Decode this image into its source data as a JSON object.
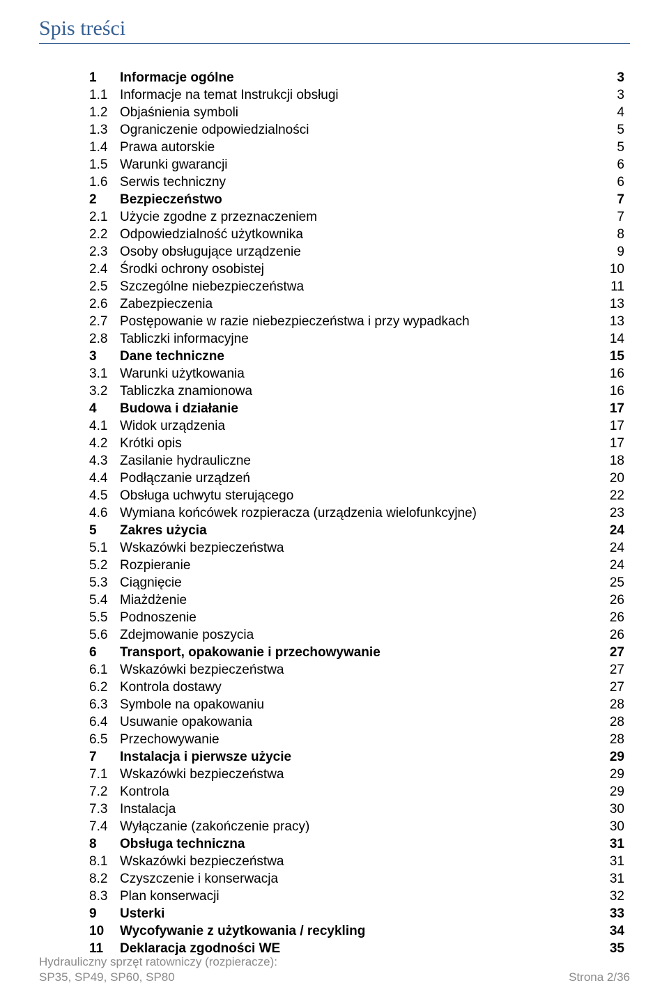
{
  "colors": {
    "title": "#365f91",
    "title_rule": "#365f91",
    "body_text": "#000000",
    "footer_text": "#8a8a8a",
    "background": "#ffffff"
  },
  "typography": {
    "title_font": "Comic Sans MS",
    "title_size_pt": 22,
    "body_font": "Arial",
    "body_size_pt": 14,
    "footer_size_pt": 12
  },
  "title": "Spis treści",
  "toc": [
    {
      "level": 1,
      "num": "1",
      "label": "Informacje ogólne",
      "page": "3"
    },
    {
      "level": 2,
      "num": "1.1",
      "label": "Informacje na temat Instrukcji obsługi",
      "page": "3"
    },
    {
      "level": 2,
      "num": "1.2",
      "label": "Objaśnienia symboli",
      "page": "4"
    },
    {
      "level": 2,
      "num": "1.3",
      "label": "Ograniczenie odpowiedzialności",
      "page": "5"
    },
    {
      "level": 2,
      "num": "1.4",
      "label": "Prawa autorskie",
      "page": "5"
    },
    {
      "level": 2,
      "num": "1.5",
      "label": "Warunki gwarancji",
      "page": "6"
    },
    {
      "level": 2,
      "num": "1.6",
      "label": "Serwis techniczny",
      "page": "6"
    },
    {
      "level": 1,
      "num": "2",
      "label": "Bezpieczeństwo",
      "page": "7"
    },
    {
      "level": 2,
      "num": "2.1",
      "label": "Użycie zgodne z przeznaczeniem",
      "page": "7"
    },
    {
      "level": 2,
      "num": "2.2",
      "label": "Odpowiedzialność użytkownika",
      "page": "8"
    },
    {
      "level": 2,
      "num": "2.3",
      "label": "Osoby obsługujące urządzenie",
      "page": "9"
    },
    {
      "level": 2,
      "num": "2.4",
      "label": "Środki ochrony osobistej",
      "page": "10"
    },
    {
      "level": 2,
      "num": "2.5",
      "label": "Szczególne niebezpieczeństwa",
      "page": "11"
    },
    {
      "level": 2,
      "num": "2.6",
      "label": "Zabezpieczenia",
      "page": "13"
    },
    {
      "level": 2,
      "num": "2.7",
      "label": "Postępowanie w razie niebezpieczeństwa i przy wypadkach",
      "page": "13"
    },
    {
      "level": 2,
      "num": "2.8",
      "label": "Tabliczki informacyjne",
      "page": "14"
    },
    {
      "level": 1,
      "num": "3",
      "label": "Dane techniczne",
      "page": "15"
    },
    {
      "level": 2,
      "num": "3.1",
      "label": "Warunki użytkowania",
      "page": "16"
    },
    {
      "level": 2,
      "num": "3.2",
      "label": "Tabliczka znamionowa",
      "page": "16"
    },
    {
      "level": 1,
      "num": "4",
      "label": "Budowa i działanie",
      "page": "17"
    },
    {
      "level": 2,
      "num": "4.1",
      "label": "Widok urządzenia",
      "page": "17"
    },
    {
      "level": 2,
      "num": "4.2",
      "label": "Krótki opis",
      "page": "17"
    },
    {
      "level": 2,
      "num": "4.3",
      "label": "Zasilanie hydrauliczne",
      "page": "18"
    },
    {
      "level": 2,
      "num": "4.4",
      "label": "Podłączanie urządzeń",
      "page": "20"
    },
    {
      "level": 2,
      "num": "4.5",
      "label": "Obsługa uchwytu sterującego",
      "page": "22"
    },
    {
      "level": 2,
      "num": "4.6",
      "label": "Wymiana końcówek rozpieracza (urządzenia wielofunkcyjne)",
      "page": "23"
    },
    {
      "level": 1,
      "num": "5",
      "label": "Zakres użycia",
      "page": "24"
    },
    {
      "level": 2,
      "num": "5.1",
      "label": "Wskazówki bezpieczeństwa",
      "page": "24"
    },
    {
      "level": 2,
      "num": "5.2",
      "label": "Rozpieranie",
      "page": "24"
    },
    {
      "level": 2,
      "num": "5.3",
      "label": "Ciągnięcie",
      "page": "25"
    },
    {
      "level": 2,
      "num": "5.4",
      "label": "Miażdżenie",
      "page": "26"
    },
    {
      "level": 2,
      "num": "5.5",
      "label": "Podnoszenie",
      "page": "26"
    },
    {
      "level": 2,
      "num": "5.6",
      "label": "Zdejmowanie poszycia",
      "page": "26"
    },
    {
      "level": 1,
      "num": "6",
      "label": "Transport, opakowanie i przechowywanie",
      "page": "27"
    },
    {
      "level": 2,
      "num": "6.1",
      "label": "Wskazówki bezpieczeństwa",
      "page": "27"
    },
    {
      "level": 2,
      "num": "6.2",
      "label": "Kontrola dostawy",
      "page": "27"
    },
    {
      "level": 2,
      "num": "6.3",
      "label": "Symbole na opakowaniu",
      "page": "28"
    },
    {
      "level": 2,
      "num": "6.4",
      "label": "Usuwanie opakowania",
      "page": "28"
    },
    {
      "level": 2,
      "num": "6.5",
      "label": "Przechowywanie",
      "page": "28"
    },
    {
      "level": 1,
      "num": "7",
      "label": "Instalacja i pierwsze użycie",
      "page": "29"
    },
    {
      "level": 2,
      "num": "7.1",
      "label": "Wskazówki bezpieczeństwa",
      "page": "29"
    },
    {
      "level": 2,
      "num": "7.2",
      "label": "Kontrola",
      "page": "29"
    },
    {
      "level": 2,
      "num": "7.3",
      "label": "Instalacja",
      "page": "30"
    },
    {
      "level": 2,
      "num": "7.4",
      "label": "Wyłączanie (zakończenie pracy)",
      "page": "30"
    },
    {
      "level": 1,
      "num": "8",
      "label": "Obsługa techniczna",
      "page": "31"
    },
    {
      "level": 2,
      "num": "8.1",
      "label": "Wskazówki bezpieczeństwa",
      "page": "31"
    },
    {
      "level": 2,
      "num": "8.2",
      "label": "Czyszczenie i konserwacja",
      "page": "31"
    },
    {
      "level": 2,
      "num": "8.3",
      "label": "Plan konserwacji",
      "page": "32"
    },
    {
      "level": 1,
      "num": "9",
      "label": "Usterki",
      "page": "33"
    },
    {
      "level": 1,
      "num": "10",
      "label": "Wycofywanie z użytkowania / recykling",
      "page": "34"
    },
    {
      "level": 1,
      "num": "11",
      "label": "Deklaracja zgodności WE",
      "page": "35"
    }
  ],
  "footer": {
    "left_line1": "Hydrauliczny sprzęt ratowniczy (rozpieracze):",
    "left_line2": "SP35, SP49, SP60, SP80",
    "right": "Strona 2/36"
  }
}
